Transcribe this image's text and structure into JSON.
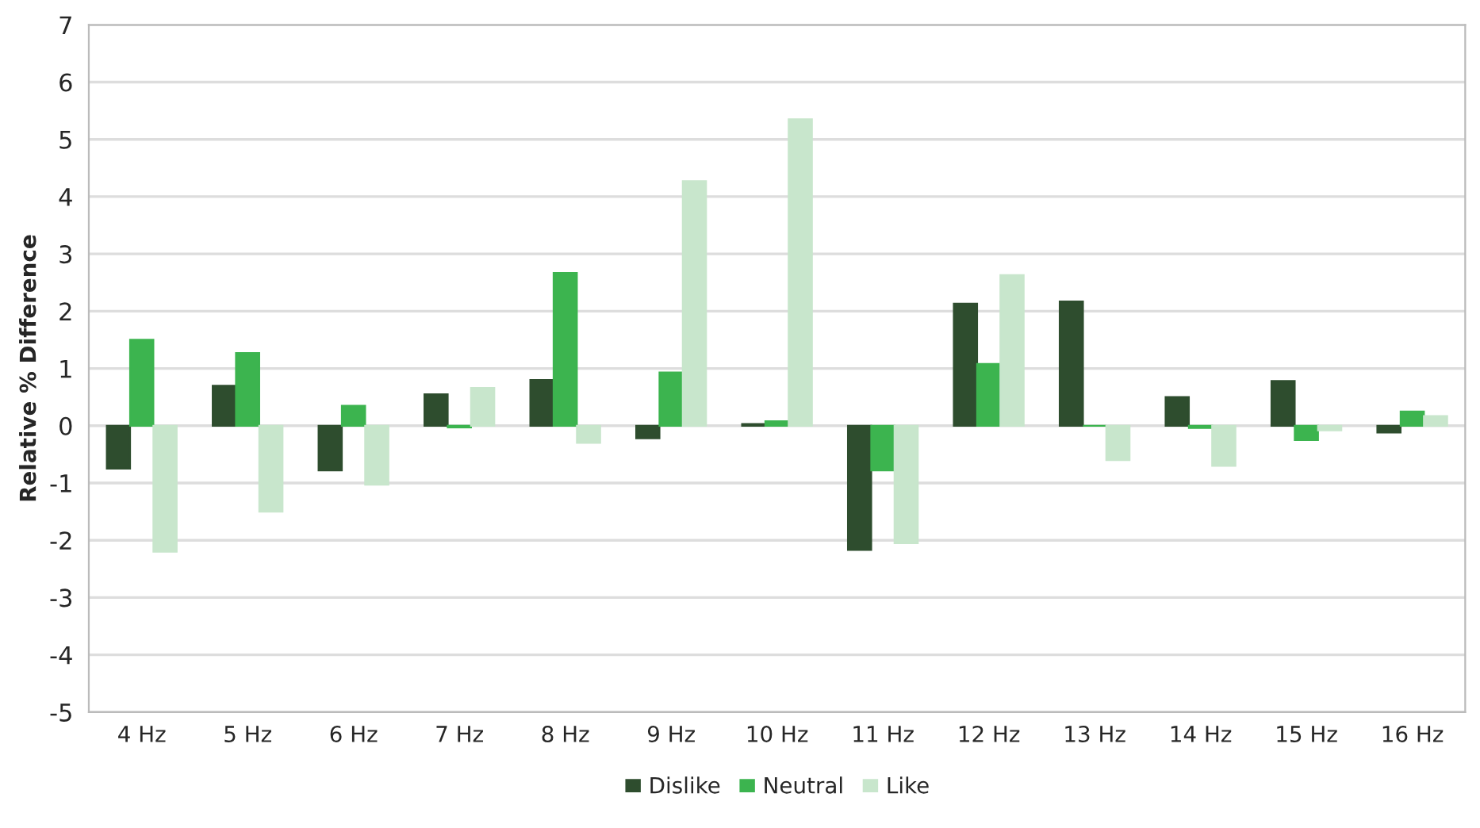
{
  "chart_data": {
    "type": "bar",
    "ylabel": "Relative % Difference",
    "categories": [
      "4 Hz",
      "5 Hz",
      "6 Hz",
      "7 Hz",
      "8 Hz",
      "9 Hz",
      "10 Hz",
      "11 Hz",
      "12 Hz",
      "13 Hz",
      "14 Hz",
      "15 Hz",
      "16 Hz"
    ],
    "series": [
      {
        "name": "Dislike",
        "color": "#2e4d2e",
        "values": [
          -0.75,
          0.7,
          -0.78,
          0.55,
          0.8,
          -0.22,
          0.03,
          -2.17,
          2.13,
          2.17,
          0.5,
          0.78,
          -0.12
        ]
      },
      {
        "name": "Neutral",
        "color": "#3cb44f",
        "values": [
          1.5,
          1.27,
          0.35,
          -0.03,
          2.67,
          0.93,
          0.08,
          -0.78,
          1.08,
          0.0,
          -0.04,
          -0.25,
          0.25
        ]
      },
      {
        "name": "Like",
        "color": "#c8e6cc",
        "values": [
          -2.2,
          -1.5,
          -1.03,
          0.66,
          -0.3,
          4.27,
          5.35,
          -2.05,
          2.63,
          -0.6,
          -0.7,
          -0.08,
          0.17
        ]
      }
    ],
    "ylim": [
      -5,
      7
    ],
    "yticks": [
      -5,
      -4,
      -3,
      -2,
      -1,
      0,
      1,
      2,
      3,
      4,
      5,
      6,
      7
    ],
    "grid": "y",
    "legend": "bottom"
  }
}
